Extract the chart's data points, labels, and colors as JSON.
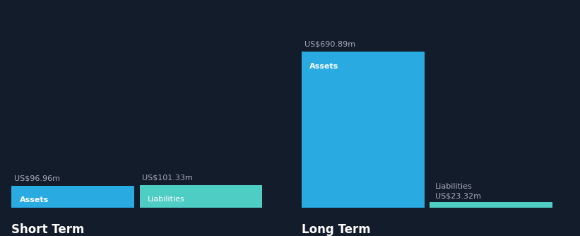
{
  "background_color": "#131c2b",
  "short_term": {
    "assets_value": 96.96,
    "liabilities_value": 101.33,
    "assets_label": "Assets",
    "liabilities_label": "Liabilities",
    "assets_color": "#29abe2",
    "liabilities_color": "#4ecdc4",
    "section_title": "Short Term"
  },
  "long_term": {
    "assets_value": 690.89,
    "liabilities_value": 23.32,
    "assets_label": "Assets",
    "liabilities_label": "Liabilities",
    "assets_color": "#29abe2",
    "liabilities_color": "#4ecdc4",
    "section_title": "Long Term"
  },
  "value_label_color": "#aaaabb",
  "bar_label_color": "#ffffff",
  "title_color": "#ffffff",
  "title_fontsize": 12,
  "label_fontsize": 8,
  "value_fontsize": 8,
  "divider_color": "#2a3a55"
}
